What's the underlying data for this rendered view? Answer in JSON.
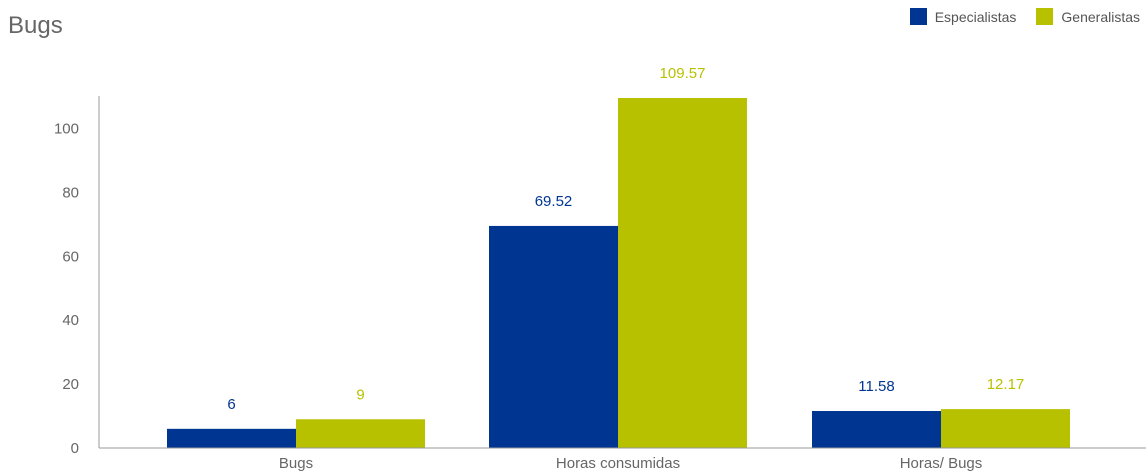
{
  "chart_data": {
    "type": "bar",
    "title": "Bugs",
    "xlabel": "",
    "ylabel": "",
    "categories": [
      "Bugs",
      "Horas consumidas",
      "Horas/ Bugs"
    ],
    "series": [
      {
        "name": "Especialistas",
        "color": "#003591",
        "values": [
          6,
          69.52,
          11.58
        ]
      },
      {
        "name": "Generalistas",
        "color": "#b8c100",
        "values": [
          9,
          109.57,
          12.17
        ]
      }
    ],
    "ylim": [
      0,
      110
    ],
    "yticks": [
      0,
      20,
      40,
      60,
      80,
      100
    ],
    "grid": false,
    "legend": "top-right"
  }
}
